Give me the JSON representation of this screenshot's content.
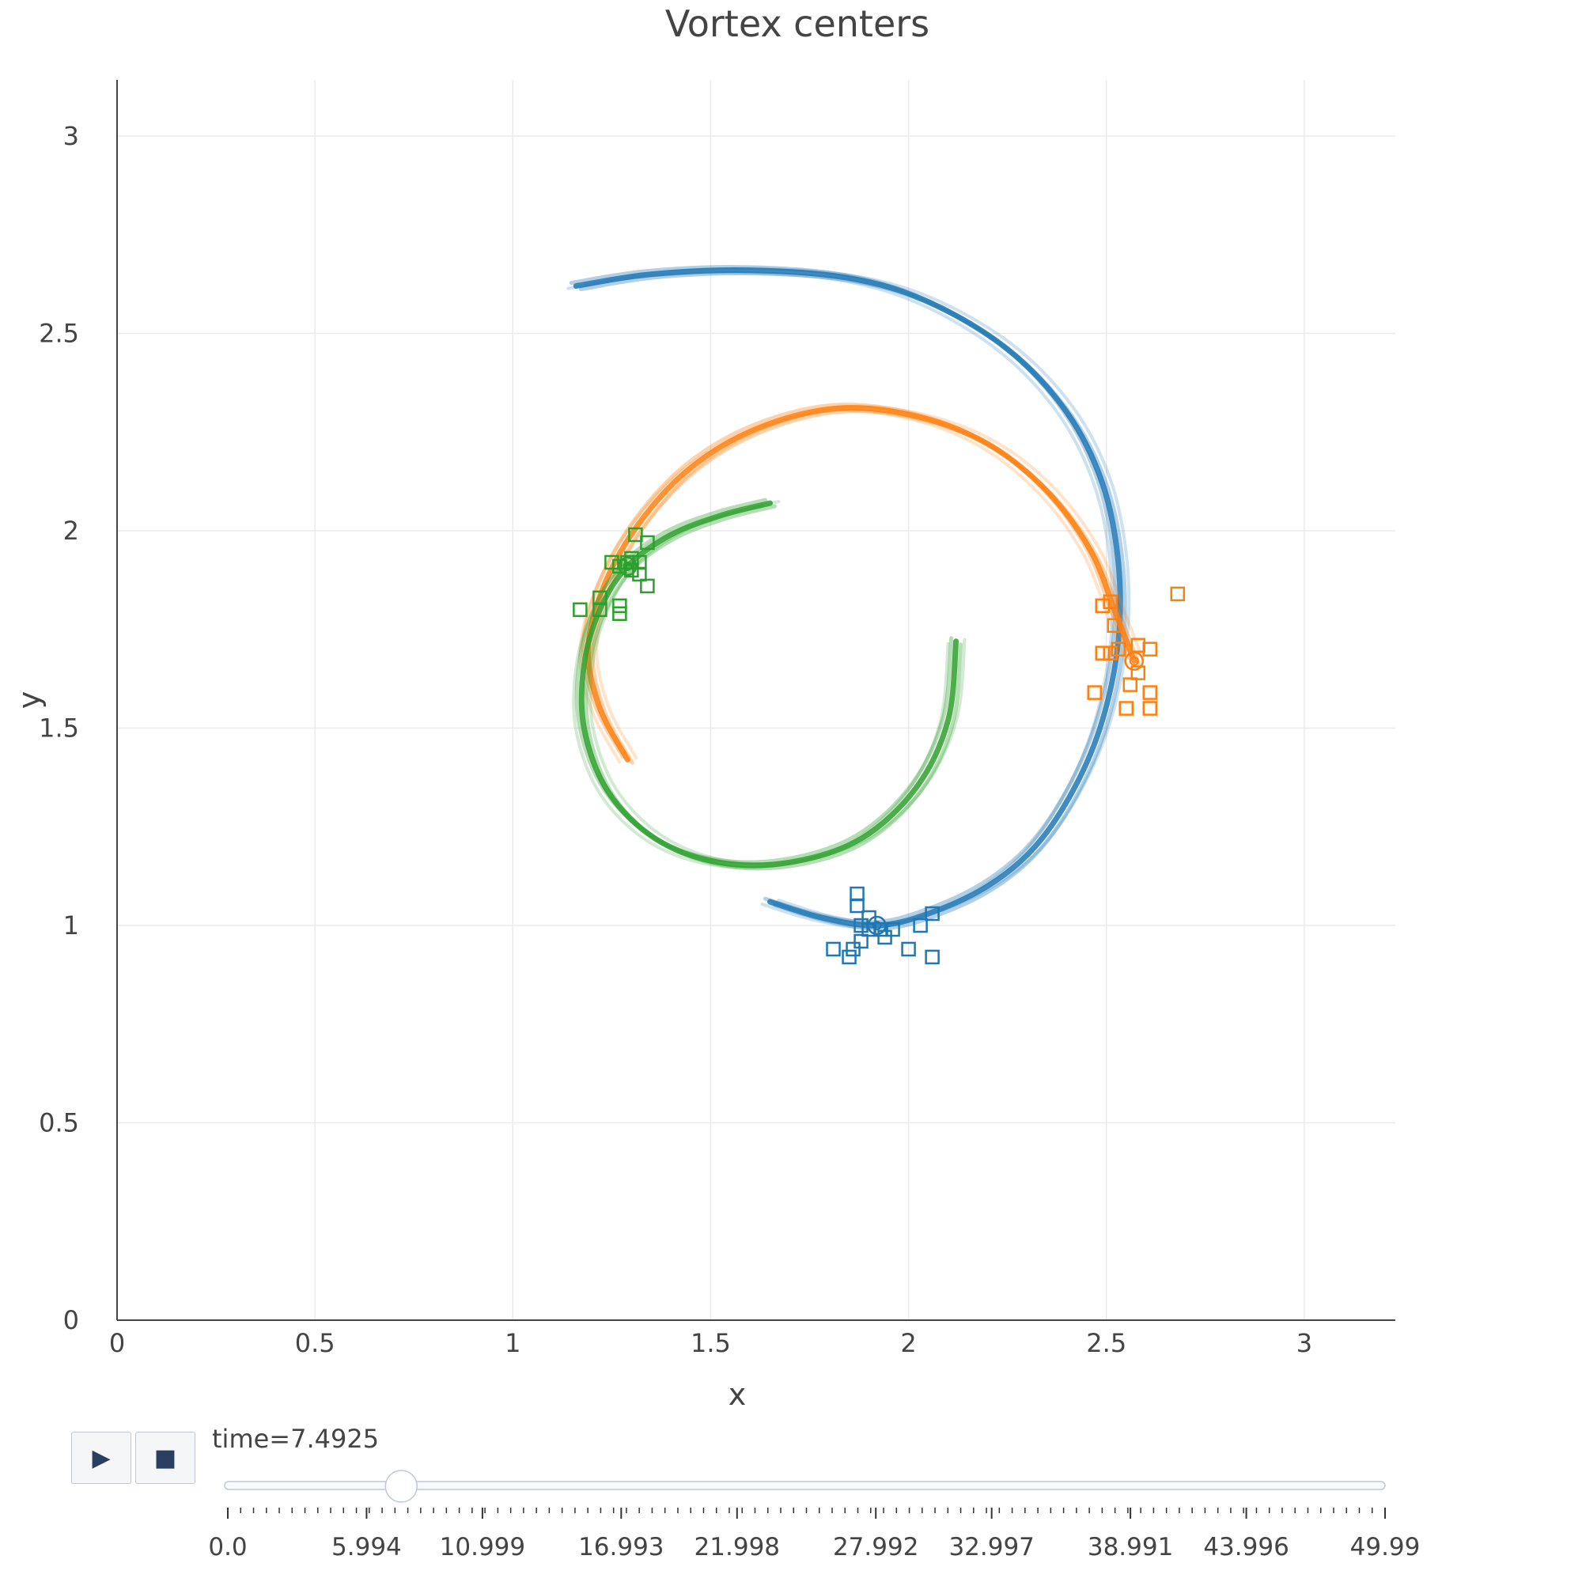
{
  "chart_data": {
    "type": "line",
    "title": "Vortex centers",
    "xlabel": "x",
    "ylabel": "y",
    "xlim": [
      -0.05,
      3.23
    ],
    "ylim": [
      0,
      3.15
    ],
    "xticks": [
      "0",
      "0.5",
      "1",
      "1.5",
      "2",
      "2.5",
      "3"
    ],
    "yticks": [
      "0",
      "0.5",
      "1",
      "1.5",
      "2",
      "2.5",
      "3"
    ],
    "xtick_values": [
      0,
      0.5,
      1,
      1.5,
      2,
      2.5,
      3
    ],
    "ytick_values": [
      0,
      0.5,
      1,
      1.5,
      2,
      2.5,
      3
    ],
    "grid": true,
    "legend": "none",
    "series": [
      {
        "color": "#1f77b4",
        "current": [
          1.92,
          1.0
        ],
        "trail": [
          [
            1.16,
            2.62
          ],
          [
            1.35,
            2.65
          ],
          [
            1.6,
            2.66
          ],
          [
            1.85,
            2.64
          ],
          [
            2.05,
            2.58
          ],
          [
            2.25,
            2.46
          ],
          [
            2.4,
            2.3
          ],
          [
            2.49,
            2.12
          ],
          [
            2.53,
            1.92
          ],
          [
            2.53,
            1.72
          ],
          [
            2.49,
            1.52
          ],
          [
            2.42,
            1.35
          ],
          [
            2.32,
            1.2
          ],
          [
            2.2,
            1.1
          ],
          [
            2.05,
            1.03
          ],
          [
            1.92,
            1.0
          ],
          [
            1.78,
            1.02
          ],
          [
            1.65,
            1.06
          ]
        ],
        "markers": [
          [
            1.87,
            1.08
          ],
          [
            1.87,
            1.05
          ],
          [
            1.9,
            1.02
          ],
          [
            1.88,
            1.0
          ],
          [
            1.9,
            0.99
          ],
          [
            1.93,
            0.99
          ],
          [
            1.96,
            0.99
          ],
          [
            1.94,
            0.97
          ],
          [
            1.88,
            0.96
          ],
          [
            1.86,
            0.94
          ],
          [
            1.81,
            0.94
          ],
          [
            1.85,
            0.92
          ],
          [
            2.0,
            0.94
          ],
          [
            2.03,
            1.0
          ],
          [
            2.06,
            1.03
          ],
          [
            2.06,
            0.92
          ]
        ]
      },
      {
        "color": "#ff7f0e",
        "current": [
          2.57,
          1.67
        ],
        "trail": [
          [
            1.29,
            1.42
          ],
          [
            1.22,
            1.55
          ],
          [
            1.19,
            1.7
          ],
          [
            1.23,
            1.86
          ],
          [
            1.32,
            2.02
          ],
          [
            1.45,
            2.16
          ],
          [
            1.62,
            2.26
          ],
          [
            1.82,
            2.31
          ],
          [
            2.02,
            2.29
          ],
          [
            2.2,
            2.22
          ],
          [
            2.35,
            2.1
          ],
          [
            2.46,
            1.95
          ],
          [
            2.52,
            1.8
          ],
          [
            2.57,
            1.67
          ]
        ],
        "markers": [
          [
            2.49,
            1.81
          ],
          [
            2.51,
            1.82
          ],
          [
            2.52,
            1.76
          ],
          [
            2.49,
            1.69
          ],
          [
            2.51,
            1.69
          ],
          [
            2.53,
            1.7
          ],
          [
            2.58,
            1.71
          ],
          [
            2.61,
            1.7
          ],
          [
            2.58,
            1.64
          ],
          [
            2.56,
            1.61
          ],
          [
            2.61,
            1.59
          ],
          [
            2.47,
            1.59
          ],
          [
            2.55,
            1.55
          ],
          [
            2.61,
            1.55
          ],
          [
            2.68,
            1.84
          ]
        ]
      },
      {
        "color": "#2ca02c",
        "current": [
          1.29,
          1.91
        ],
        "trail": [
          [
            2.12,
            1.72
          ],
          [
            2.1,
            1.52
          ],
          [
            2.02,
            1.35
          ],
          [
            1.88,
            1.22
          ],
          [
            1.7,
            1.16
          ],
          [
            1.52,
            1.16
          ],
          [
            1.36,
            1.22
          ],
          [
            1.24,
            1.34
          ],
          [
            1.18,
            1.5
          ],
          [
            1.18,
            1.66
          ],
          [
            1.22,
            1.8
          ],
          [
            1.29,
            1.91
          ],
          [
            1.4,
            1.99
          ],
          [
            1.53,
            2.04
          ],
          [
            1.65,
            2.07
          ]
        ],
        "markers": [
          [
            1.31,
            1.99
          ],
          [
            1.34,
            1.97
          ],
          [
            1.25,
            1.92
          ],
          [
            1.27,
            1.91
          ],
          [
            1.29,
            1.92
          ],
          [
            1.3,
            1.93
          ],
          [
            1.32,
            1.92
          ],
          [
            1.3,
            1.9
          ],
          [
            1.32,
            1.89
          ],
          [
            1.34,
            1.86
          ],
          [
            1.22,
            1.83
          ],
          [
            1.17,
            1.8
          ],
          [
            1.22,
            1.8
          ],
          [
            1.27,
            1.81
          ],
          [
            1.27,
            1.79
          ]
        ]
      }
    ]
  },
  "controls": {
    "play_icon": "▶",
    "stop_icon": "■",
    "slider_label": "time=7.4925",
    "slider_value": 7.4925,
    "slider_min": 0,
    "slider_max": 49.99,
    "slider_ticks": [
      "0.0",
      "5.994",
      "10.999",
      "16.993",
      "21.998",
      "27.992",
      "32.997",
      "38.991",
      "43.996",
      "49.99"
    ],
    "slider_tick_values": [
      0,
      5.994,
      10.999,
      16.993,
      21.998,
      27.992,
      32.997,
      38.991,
      43.996,
      49.99
    ]
  }
}
